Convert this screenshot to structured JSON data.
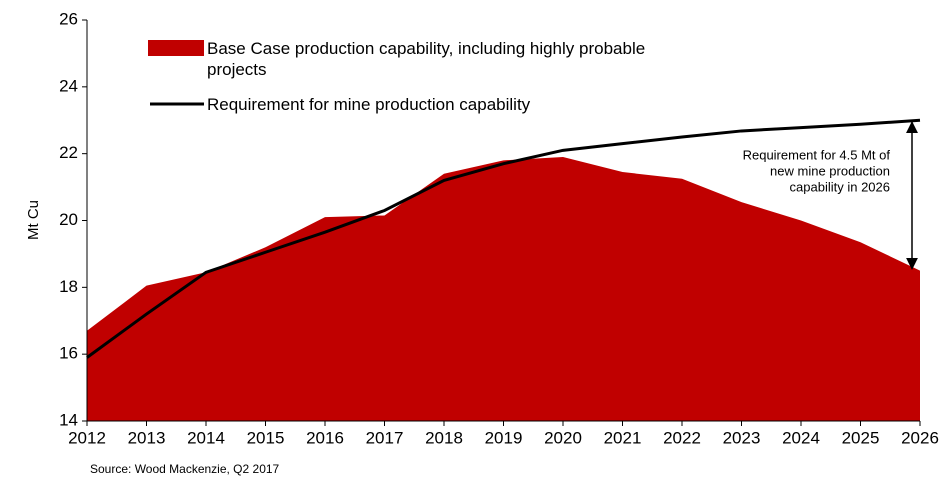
{
  "chart_data": {
    "type": "area_line",
    "ylabel": "Mt Cu",
    "categories": [
      "2012",
      "2013",
      "2014",
      "2015",
      "2016",
      "2017",
      "2018",
      "2019",
      "2020",
      "2021",
      "2022",
      "2023",
      "2024",
      "2025",
      "2026"
    ],
    "series": [
      {
        "name": "Base Case production capability, including highly probable projects",
        "kind": "area",
        "color": "#c00000",
        "values": [
          16.7,
          18.05,
          18.45,
          19.2,
          20.1,
          20.15,
          21.4,
          21.8,
          21.9,
          21.45,
          21.25,
          20.55,
          20.0,
          19.35,
          18.5
        ]
      },
      {
        "name": "Requirement for mine production capability",
        "kind": "line",
        "color": "#000000",
        "values": [
          15.9,
          17.2,
          18.45,
          19.05,
          19.65,
          20.3,
          21.2,
          21.7,
          22.1,
          22.3,
          22.5,
          22.68,
          22.78,
          22.88,
          23.0
        ]
      }
    ],
    "ylim": [
      14,
      26
    ],
    "yticks": [
      14,
      16,
      18,
      20,
      22,
      24,
      26
    ],
    "annotation": {
      "lines": [
        "Requirement for 4.5 Mt of",
        "new mine production",
        "capability in 2026"
      ],
      "from": 23.0,
      "to": 18.5
    },
    "source": "Source: Wood Mackenzie, Q2 2017"
  }
}
